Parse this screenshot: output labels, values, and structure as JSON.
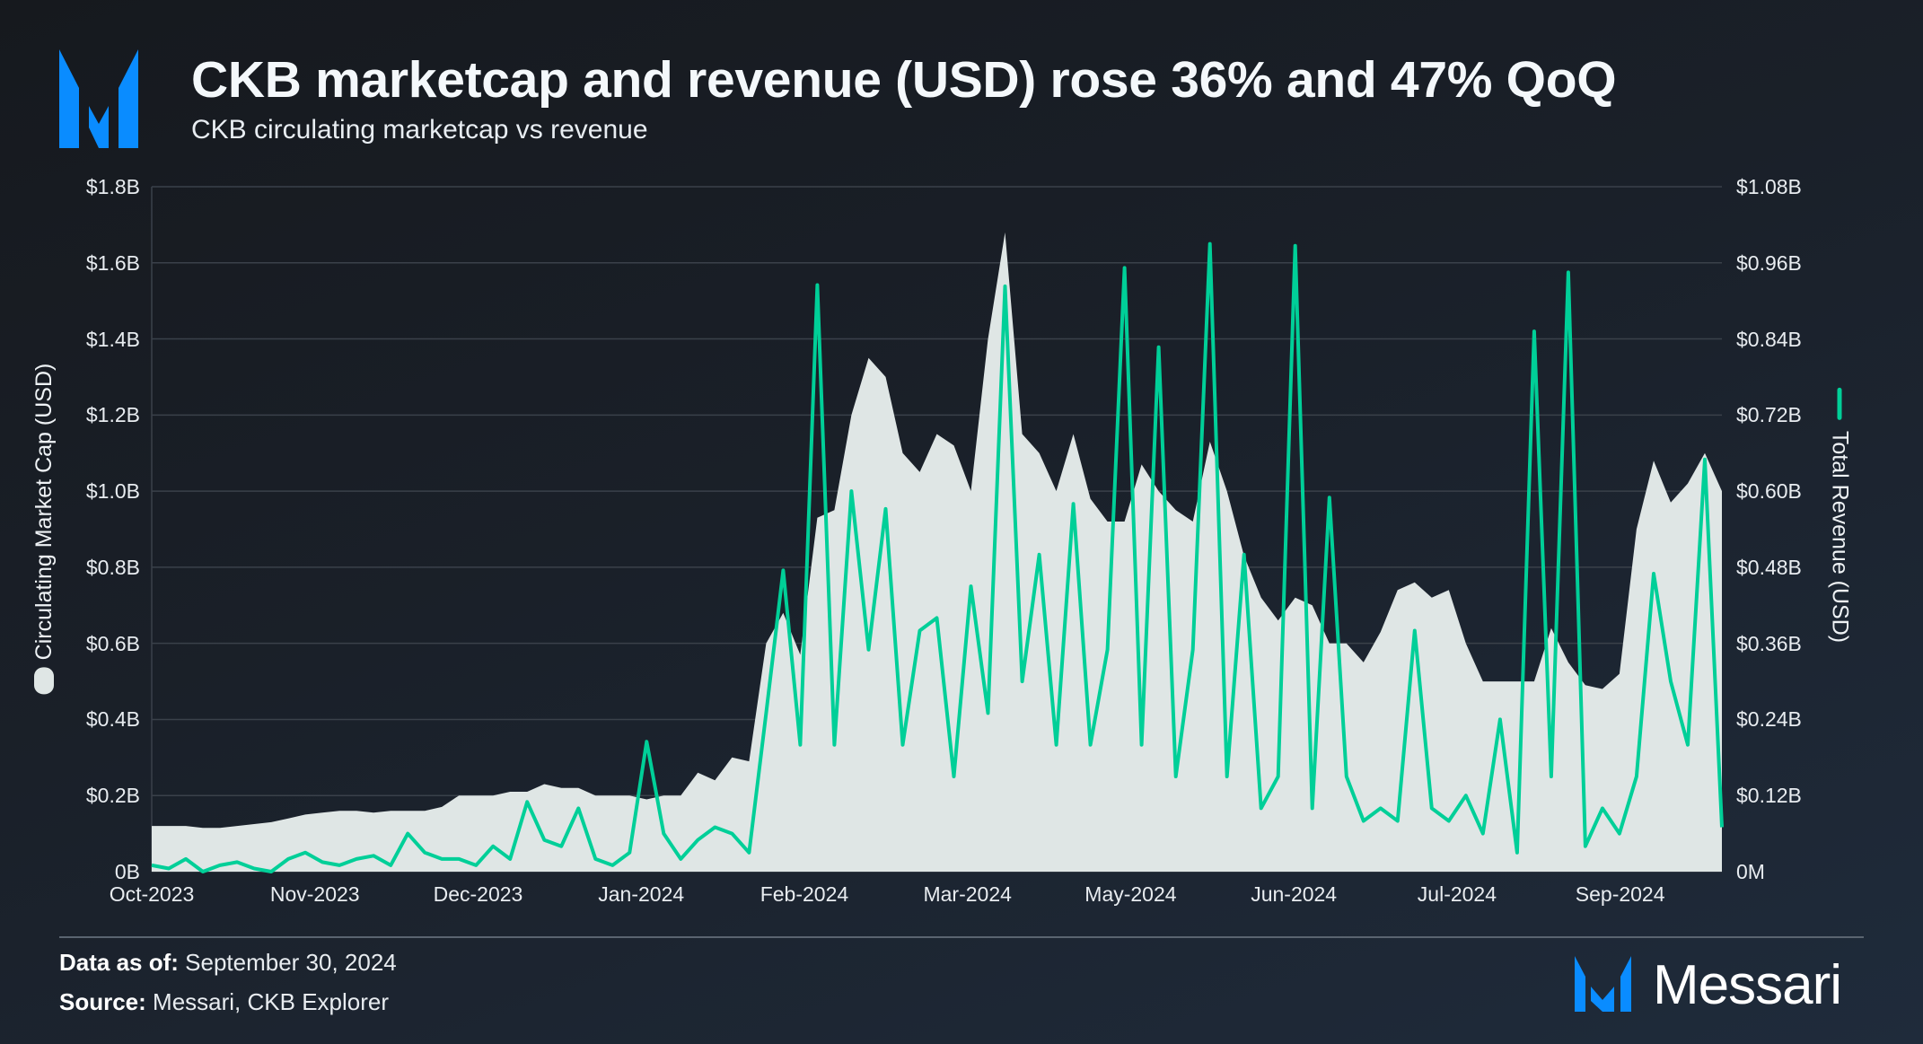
{
  "header": {
    "title": "CKB marketcap and revenue (USD) rose 36% and 47% QoQ",
    "subtitle": "CKB circulating marketcap vs revenue"
  },
  "footer": {
    "data_as_of_label": "Data as of:",
    "data_as_of_value": "September 30, 2024",
    "source_label": "Source:",
    "source_value": "Messari, CKB Explorer",
    "brand": "Messari"
  },
  "colors": {
    "brand_blue": "#0a8cff",
    "area": "#dfe6e5",
    "line": "#00cf98",
    "grid": "#3a414a"
  },
  "chart_data": {
    "type": "area+line",
    "title": "CKB marketcap and revenue (USD) rose 36% and 47% QoQ",
    "subtitle": "CKB circulating marketcap vs revenue",
    "y_left": {
      "label": "Circulating Market Cap (USD)",
      "ylim": [
        0,
        1.8
      ],
      "unit": "B",
      "ticks": [
        "$1.8B",
        "$1.6B",
        "$1.4B",
        "$1.2B",
        "$1.0B",
        "$0.8B",
        "$0.6B",
        "$0.4B",
        "$0.2B",
        "0B"
      ]
    },
    "y_right": {
      "label": "Total Revenue (USD)",
      "ylim": [
        0,
        1080
      ],
      "unit": "M",
      "ticks": [
        "$1.08B",
        "$0.96B",
        "$0.84B",
        "$0.72B",
        "$0.60B",
        "$0.48B",
        "$0.36B",
        "$0.24B",
        "$0.12B",
        "0M"
      ]
    },
    "x_ticks": [
      "Oct-2023",
      "Nov-2023",
      "Dec-2023",
      "Jan-2024",
      "Feb-2024",
      "Mar-2024",
      "May-2024",
      "Jun-2024",
      "Jul-2024",
      "Sep-2024"
    ],
    "grid": true,
    "dates": [
      "2023-10-01",
      "2023-10-05",
      "2023-10-09",
      "2023-10-13",
      "2023-10-17",
      "2023-10-21",
      "2023-10-25",
      "2023-10-29",
      "2023-11-02",
      "2023-11-06",
      "2023-11-10",
      "2023-11-14",
      "2023-11-18",
      "2023-11-22",
      "2023-11-26",
      "2023-11-30",
      "2023-12-04",
      "2023-12-08",
      "2023-12-12",
      "2023-12-16",
      "2023-12-20",
      "2023-12-24",
      "2023-12-28",
      "2024-01-01",
      "2024-01-05",
      "2024-01-09",
      "2024-01-13",
      "2024-01-17",
      "2024-01-21",
      "2024-01-25",
      "2024-01-29",
      "2024-02-02",
      "2024-02-06",
      "2024-02-10",
      "2024-02-14",
      "2024-02-18",
      "2024-02-22",
      "2024-02-26",
      "2024-03-01",
      "2024-03-05",
      "2024-03-09",
      "2024-03-13",
      "2024-03-17",
      "2024-03-21",
      "2024-03-25",
      "2024-03-29",
      "2024-04-02",
      "2024-04-06",
      "2024-04-10",
      "2024-04-14",
      "2024-04-18",
      "2024-04-22",
      "2024-04-26",
      "2024-04-30",
      "2024-05-04",
      "2024-05-08",
      "2024-05-12",
      "2024-05-16",
      "2024-05-20",
      "2024-05-24",
      "2024-05-28",
      "2024-06-01",
      "2024-06-05",
      "2024-06-09",
      "2024-06-13",
      "2024-06-17",
      "2024-06-21",
      "2024-06-25",
      "2024-06-29",
      "2024-07-03",
      "2024-07-07",
      "2024-07-11",
      "2024-07-15",
      "2024-07-19",
      "2024-07-23",
      "2024-07-27",
      "2024-07-31",
      "2024-08-04",
      "2024-08-08",
      "2024-08-12",
      "2024-08-16",
      "2024-08-20",
      "2024-08-24",
      "2024-08-28",
      "2024-09-01",
      "2024-09-05",
      "2024-09-09",
      "2024-09-13",
      "2024-09-17",
      "2024-09-21",
      "2024-09-25",
      "2024-09-29",
      "2024-09-30"
    ],
    "series": [
      {
        "name": "Circulating Market Cap (USD)",
        "axis": "left",
        "type": "area",
        "unit": "B",
        "values": [
          0.12,
          0.12,
          0.12,
          0.115,
          0.115,
          0.12,
          0.125,
          0.13,
          0.14,
          0.15,
          0.155,
          0.16,
          0.16,
          0.155,
          0.16,
          0.16,
          0.16,
          0.17,
          0.2,
          0.2,
          0.2,
          0.21,
          0.21,
          0.23,
          0.22,
          0.22,
          0.2,
          0.2,
          0.2,
          0.19,
          0.2,
          0.2,
          0.26,
          0.24,
          0.3,
          0.29,
          0.6,
          0.68,
          0.57,
          0.93,
          0.95,
          1.2,
          1.35,
          1.3,
          1.1,
          1.05,
          1.15,
          1.12,
          1.0,
          1.4,
          1.68,
          1.15,
          1.1,
          1.0,
          1.15,
          0.98,
          0.92,
          0.92,
          1.07,
          1.0,
          0.95,
          0.92,
          1.13,
          1.0,
          0.83,
          0.72,
          0.66,
          0.72,
          0.7,
          0.6,
          0.6,
          0.55,
          0.63,
          0.74,
          0.76,
          0.72,
          0.74,
          0.6,
          0.5,
          0.5,
          0.5,
          0.5,
          0.64,
          0.55,
          0.49,
          0.48,
          0.52,
          0.9,
          1.08,
          0.97,
          1.02,
          1.1,
          1.0
        ]
      },
      {
        "name": "Total Revenue (USD)",
        "axis": "right",
        "type": "line",
        "unit": "M",
        "values": [
          10,
          5,
          20,
          0,
          10,
          15,
          5,
          0,
          20,
          30,
          15,
          10,
          20,
          25,
          10,
          60,
          30,
          20,
          20,
          10,
          40,
          20,
          110,
          50,
          40,
          100,
          20,
          10,
          30,
          205,
          60,
          20,
          50,
          70,
          60,
          30,
          250,
          475,
          200,
          925,
          200,
          600,
          350,
          572,
          200,
          380,
          400,
          150,
          450,
          250,
          923,
          300,
          500,
          200,
          580,
          200,
          350,
          952,
          200,
          827,
          150,
          350,
          990,
          150,
          500,
          100,
          150,
          987,
          100,
          590,
          150,
          80,
          100,
          80,
          380,
          100,
          80,
          120,
          60,
          240,
          30,
          852,
          150,
          945,
          40,
          100,
          60,
          150,
          470,
          300,
          200,
          650,
          70
        ]
      }
    ]
  }
}
